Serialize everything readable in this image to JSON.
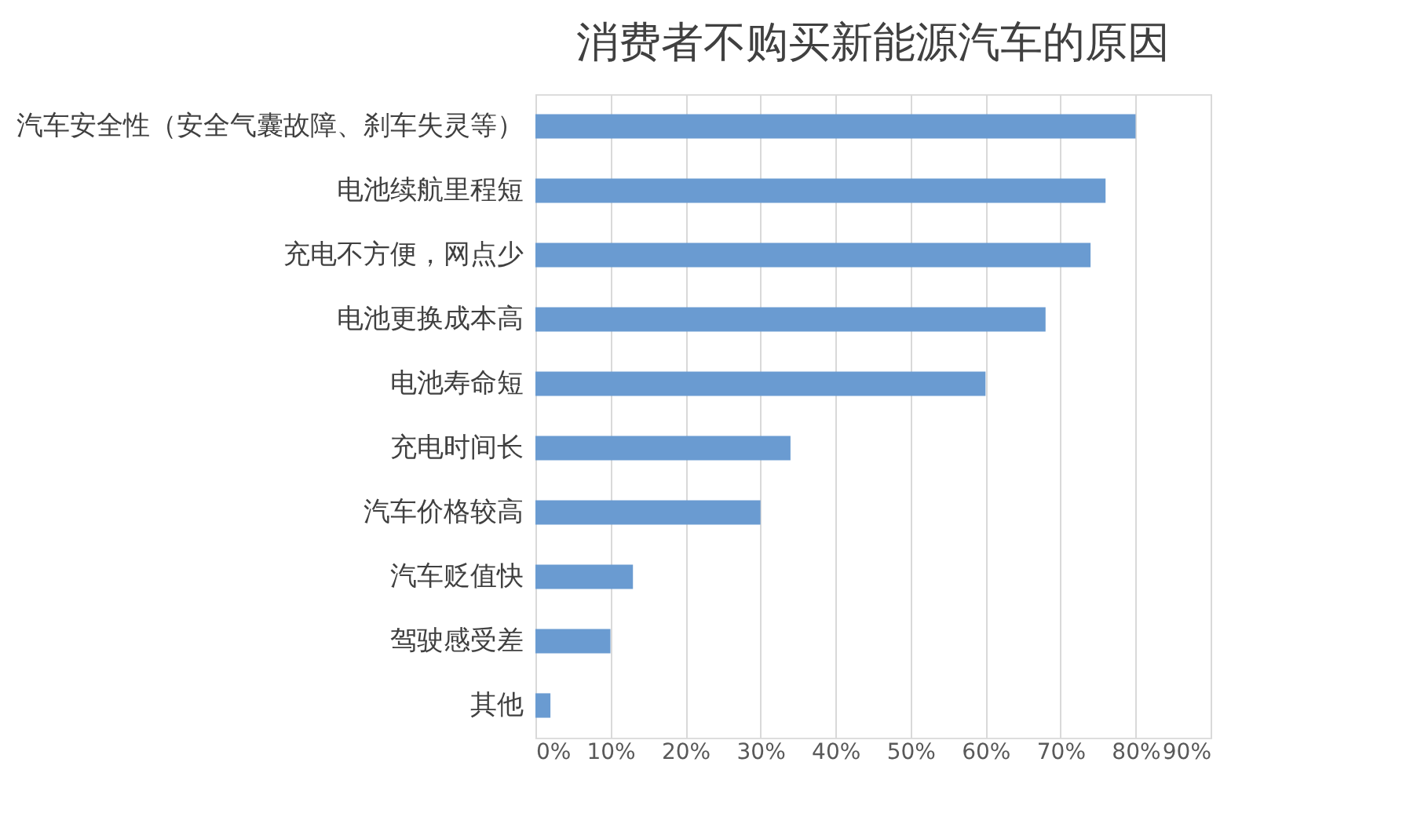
{
  "chart_data": {
    "type": "bar",
    "orientation": "horizontal",
    "title": "消费者不购买新能源汽车的原因",
    "categories": [
      "汽车安全性（安全气囊故障、刹车失灵等）",
      "电池续航里程短",
      "充电不方便，网点少",
      "电池更换成本高",
      "电池寿命短",
      "充电时间长",
      "汽车价格较高",
      "汽车贬值快",
      "驾驶感受差",
      "其他"
    ],
    "values": [
      80,
      76,
      74,
      68,
      60,
      34,
      30,
      13,
      10,
      2
    ],
    "color": "#6a9bd1",
    "xlim": [
      0,
      90
    ],
    "xticks": [
      {
        "value": 0,
        "label": "0%"
      },
      {
        "value": 10,
        "label": "10%"
      },
      {
        "value": 20,
        "label": "20%"
      },
      {
        "value": 30,
        "label": "30%"
      },
      {
        "value": 40,
        "label": "40%"
      },
      {
        "value": 50,
        "label": "50%"
      },
      {
        "value": 60,
        "label": "60%"
      },
      {
        "value": 70,
        "label": "70%"
      },
      {
        "value": 80,
        "label": "80%"
      },
      {
        "value": 90,
        "label": "90%"
      }
    ],
    "grid": "x"
  }
}
